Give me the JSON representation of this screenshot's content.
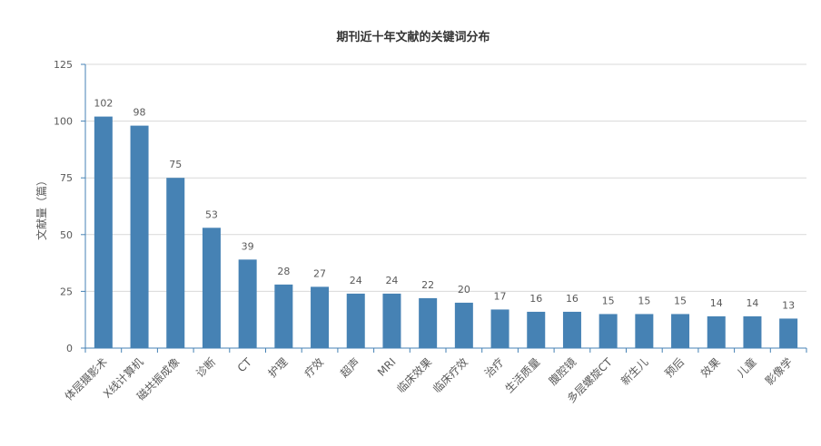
{
  "chart_data": {
    "type": "bar",
    "title": "期刊近十年文献的关键词分布",
    "xlabel": "",
    "ylabel": "文献量（篇）",
    "ylim": [
      0,
      125
    ],
    "yticks": [
      0,
      25,
      50,
      75,
      100,
      125
    ],
    "grid": true,
    "legend": "none",
    "categories": [
      "体层摄影术",
      "X线计算机",
      "磁共振成像",
      "诊断",
      "CT",
      "护理",
      "疗效",
      "超声",
      "MRI",
      "临床效果",
      "临床疗效",
      "治疗",
      "生活质量",
      "腹腔镜",
      "多层螺旋CT",
      "新生儿",
      "预后",
      "效果",
      "儿童",
      "影像学"
    ],
    "values": [
      102,
      98,
      75,
      53,
      39,
      28,
      27,
      24,
      24,
      22,
      20,
      17,
      16,
      16,
      15,
      15,
      15,
      14,
      14,
      13
    ],
    "colors": {
      "bar": "#4682b4",
      "axis": "#4682b4",
      "grid": "#d9d9d9",
      "text": "#595959"
    }
  }
}
